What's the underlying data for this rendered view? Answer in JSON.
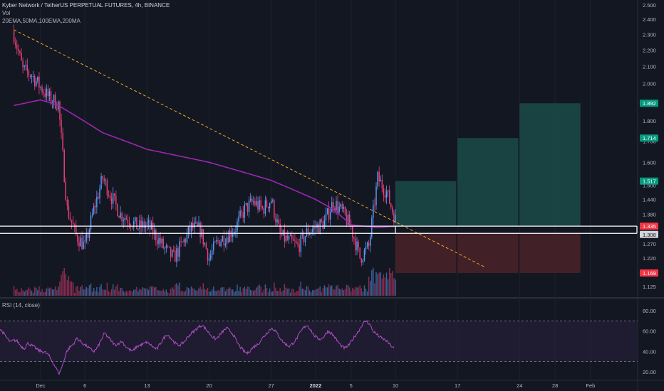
{
  "header": {
    "title": "Kyber Network / TetherUS PERPETUAL FUTURES, 4h, BINANCE",
    "volume_label": "Vol",
    "indicators": "20EMA,50MA,100EMA,200MA",
    "rsi_label": "RSI (14, close)"
  },
  "colors": {
    "background": "#131722",
    "up": "#5b9cf6",
    "down": "#ec407a",
    "ma": "#9c27b0",
    "trendline": "#f5a623",
    "rsi_line": "#b04fc8",
    "target_zone": "#1b4b48",
    "stop_zone": "#4a2229",
    "target_label": "#089981",
    "stop_label": "#f23645"
  },
  "chart_data": [
    {
      "type": "candlestick",
      "title": "Kyber Network / TetherUS PERPETUAL FUTURES, 4h, BINANCE",
      "y_axis": {
        "scale": "log",
        "ticks": [
          "2.500",
          "2.400",
          "2.300",
          "2.200",
          "2.100",
          "2.000",
          "1.900",
          "1.800",
          "1.700",
          "1.600",
          "1.500",
          "1.440",
          "1.380",
          "1.330",
          "1.270",
          "1.220",
          "1.175",
          "1.125"
        ]
      },
      "x_axis": {
        "ticks": [
          "Dec",
          "6",
          "13",
          "20",
          "27",
          "2022",
          "5",
          "10",
          "17",
          "24",
          "28",
          "Feb"
        ]
      },
      "price_path": [
        {
          "date": "Nov 28",
          "price": 2.3
        },
        {
          "date": "Nov 29",
          "price": 2.08
        },
        {
          "date": "Nov 30",
          "price": 2.05
        },
        {
          "date": "Dec 1",
          "price": 1.98
        },
        {
          "date": "Dec 2",
          "price": 1.92
        },
        {
          "date": "Dec 3",
          "price": 1.89
        },
        {
          "date": "Dec 4",
          "price": 1.4
        },
        {
          "date": "Dec 5",
          "price": 1.3
        },
        {
          "date": "Dec 6",
          "price": 1.26
        },
        {
          "date": "Dec 7",
          "price": 1.4
        },
        {
          "date": "Dec 8",
          "price": 1.53
        },
        {
          "date": "Dec 9",
          "price": 1.45
        },
        {
          "date": "Dec 10",
          "price": 1.38
        },
        {
          "date": "Dec 11",
          "price": 1.36
        },
        {
          "date": "Dec 12",
          "price": 1.33
        },
        {
          "date": "Dec 13",
          "price": 1.34
        },
        {
          "date": "Dec 14",
          "price": 1.3
        },
        {
          "date": "Dec 15",
          "price": 1.25
        },
        {
          "date": "Dec 16",
          "price": 1.22
        },
        {
          "date": "Dec 17",
          "price": 1.27
        },
        {
          "date": "Dec 18",
          "price": 1.33
        },
        {
          "date": "Dec 19",
          "price": 1.32
        },
        {
          "date": "Dec 20",
          "price": 1.22
        },
        {
          "date": "Dec 21",
          "price": 1.28
        },
        {
          "date": "Dec 22",
          "price": 1.3
        },
        {
          "date": "Dec 23",
          "price": 1.33
        },
        {
          "date": "Dec 24",
          "price": 1.4
        },
        {
          "date": "Dec 25",
          "price": 1.43
        },
        {
          "date": "Dec 26",
          "price": 1.4
        },
        {
          "date": "Dec 27",
          "price": 1.44
        },
        {
          "date": "Dec 28",
          "price": 1.3
        },
        {
          "date": "Dec 29",
          "price": 1.28
        },
        {
          "date": "Dec 30",
          "price": 1.26
        },
        {
          "date": "Dec 31",
          "price": 1.31
        },
        {
          "date": "Jan 1",
          "price": 1.33
        },
        {
          "date": "Jan 2",
          "price": 1.35
        },
        {
          "date": "Jan 3",
          "price": 1.43
        },
        {
          "date": "Jan 4",
          "price": 1.39
        },
        {
          "date": "Jan 5",
          "price": 1.33
        },
        {
          "date": "Jan 6",
          "price": 1.22
        },
        {
          "date": "Jan 7",
          "price": 1.26
        },
        {
          "date": "Jan 8",
          "price": 1.53
        },
        {
          "date": "Jan 9",
          "price": 1.47
        },
        {
          "date": "Jan 10",
          "price": 1.36
        }
      ],
      "ma200": [
        {
          "date": "Nov 28",
          "value": 1.88
        },
        {
          "date": "Dec 1",
          "value": 1.91
        },
        {
          "date": "Dec 3",
          "value": 1.88
        },
        {
          "date": "Dec 8",
          "value": 1.74
        },
        {
          "date": "Dec 13",
          "value": 1.66
        },
        {
          "date": "Dec 20",
          "value": 1.6
        },
        {
          "date": "Dec 27",
          "value": 1.52
        },
        {
          "date": "Jan 1",
          "value": 1.44
        },
        {
          "date": "Jan 3",
          "value": 1.4
        },
        {
          "date": "Jan 5",
          "value": 1.34
        },
        {
          "date": "Jan 8",
          "value": 1.33
        },
        {
          "date": "Jan 10",
          "value": 1.335
        }
      ],
      "trendline": [
        {
          "date": "Nov 28",
          "price": 2.33
        },
        {
          "date": "Jan 20",
          "price": 1.19
        }
      ],
      "support_zone": {
        "upper": 1.335,
        "lower": 1.308
      },
      "targets": [
        {
          "from": "Jan 10",
          "to": "Jan 17",
          "price": 1.517
        },
        {
          "from": "Jan 17",
          "to": "Jan 24",
          "price": 1.714
        },
        {
          "from": "Jan 24",
          "to": "Jan 31",
          "price": 1.892
        }
      ],
      "stop": 1.169,
      "price_labels": {
        "targets": [
          "1.892",
          "1.714",
          "1.517"
        ],
        "upper": "1.335",
        "lower": "1.308",
        "stop": "1.169"
      }
    },
    {
      "type": "line",
      "title": "RSI (14, close)",
      "y_axis": {
        "ticks": [
          "80.00",
          "60.00",
          "40.00",
          "20.00"
        ],
        "bands": [
          70,
          30
        ]
      },
      "values": [
        62,
        58,
        53,
        49,
        51,
        50,
        45,
        43,
        48,
        46,
        44,
        41,
        40,
        39,
        36,
        30,
        24,
        18,
        27,
        39,
        44,
        47,
        53,
        50,
        47,
        45,
        42,
        40,
        44,
        51,
        58,
        54,
        50,
        46,
        48,
        50,
        45,
        42,
        40,
        44,
        46,
        47,
        49,
        47,
        44,
        42,
        48,
        53,
        57,
        53,
        49,
        46,
        47,
        50,
        55,
        58,
        61,
        64,
        66,
        62,
        58,
        54,
        52,
        56,
        60,
        63,
        60,
        56,
        49,
        44,
        40,
        38,
        42,
        45,
        47,
        52,
        56,
        60,
        63,
        60,
        55,
        50,
        47,
        45,
        48,
        52,
        58,
        63,
        66,
        62,
        56,
        53,
        52,
        55,
        60,
        58,
        54,
        49,
        45,
        43,
        46,
        51,
        56,
        61,
        67,
        70,
        67,
        60,
        57,
        54,
        52,
        50,
        46,
        43
      ]
    }
  ]
}
